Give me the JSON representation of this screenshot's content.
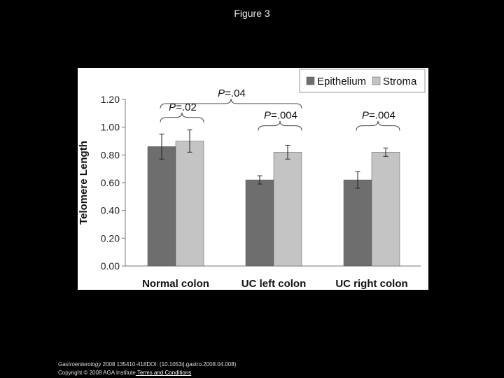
{
  "figure_title": "Figure 3",
  "footer": {
    "journal": "Gastroenterology",
    "citation": " 2008 135410-418DOI: (10.1053/j.gastro.2008.04.008)",
    "copyright": "Copyright © 2008 AGA Institute",
    "link": " Terms and Conditions"
  },
  "colors": {
    "epithelium": "#6e6e6e",
    "stroma": "#c4c4c4",
    "background": "#000000",
    "plot_background": "#ffffff"
  },
  "chart_data": {
    "type": "bar",
    "title": "",
    "xlabel": "",
    "ylabel": "Telomere Length",
    "ylim": [
      0,
      1.2
    ],
    "yticks": [
      "0.00",
      "0.20",
      "0.40",
      "0.60",
      "0.80",
      "1.00",
      "1.20"
    ],
    "grid": false,
    "legend_position": "top-right",
    "categories": [
      "Normal colon",
      "UC left colon",
      "UC right colon"
    ],
    "series": [
      {
        "name": "Epithelium",
        "values": [
          0.86,
          0.62,
          0.62
        ],
        "error": [
          0.09,
          0.03,
          0.06
        ],
        "color": "#6e6e6e"
      },
      {
        "name": "Stroma",
        "values": [
          0.9,
          0.82,
          0.82
        ],
        "error": [
          0.08,
          0.05,
          0.03
        ],
        "color": "#c4c4c4"
      }
    ],
    "annotations": [
      {
        "text": "P=.02",
        "group_from": 0,
        "group_to": 0,
        "y": 1.07
      },
      {
        "text": "P=.004",
        "group_from": 1,
        "group_to": 1,
        "y": 1.01
      },
      {
        "text": "P=.004",
        "group_from": 2,
        "group_to": 2,
        "y": 1.01
      },
      {
        "text": "P=.04",
        "group_from": 0,
        "group_to": 1,
        "y": 1.17
      }
    ]
  }
}
